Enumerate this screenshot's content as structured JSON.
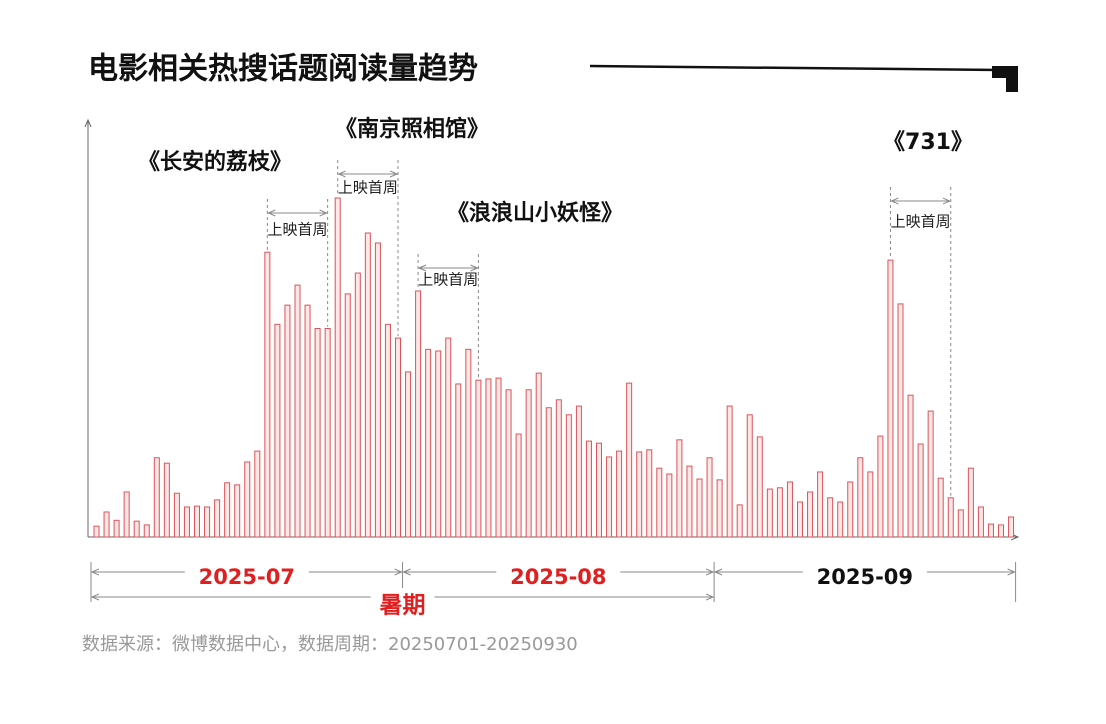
{
  "chart_data": {
    "type": "bar",
    "title": "电影相关热搜话题阅读量趋势",
    "source": "数据来源：微博数据中心，数据周期：20250701-20250930",
    "categories": [
      null,
      null,
      null,
      null,
      null,
      null,
      null,
      null,
      null,
      null,
      null,
      null,
      null,
      null,
      null,
      null,
      null,
      null,
      null,
      null,
      null,
      null,
      null,
      null,
      null,
      null,
      null,
      null,
      null,
      null,
      null,
      null,
      null,
      null,
      null,
      null,
      null,
      null,
      null,
      null,
      null,
      null,
      null,
      null,
      null,
      null,
      null,
      null,
      null,
      null,
      null,
      null,
      null,
      null,
      null,
      null,
      null,
      null,
      null,
      null,
      null,
      null,
      null,
      null,
      null,
      null,
      null,
      null,
      null,
      null,
      null,
      null,
      null,
      null,
      null,
      null,
      null,
      null,
      null,
      null,
      null,
      null,
      null,
      null,
      null,
      null,
      null,
      null,
      null,
      null,
      null,
      null
    ],
    "values": [
      2.6,
      6,
      4,
      10.8,
      3.8,
      2.9,
      19,
      17.7,
      10.5,
      7.2,
      7.4,
      7.2,
      8.9,
      13,
      12.5,
      18,
      20.6,
      68.3,
      51,
      55.6,
      60.4,
      55.6,
      50,
      50,
      81.3,
      58.3,
      63.3,
      72.9,
      70.5,
      51,
      47.7,
      39.6,
      59,
      45,
      44.6,
      47.7,
      36.7,
      45,
      37.6,
      37.9,
      38.1,
      35.3,
      24.7,
      35.3,
      39.3,
      31,
      32.9,
      29.3,
      31.4,
      23,
      22.5,
      19.2,
      20.6,
      36.9,
      20.4,
      20.9,
      16.5,
      15.1,
      23.3,
      17,
      13.9,
      19,
      13.7,
      31.4,
      7.7,
      29.3,
      24,
      11.5,
      11.8,
      13.2,
      8.4,
      10.8,
      15.6,
      9.4,
      8.4,
      13.2,
      19,
      15.6,
      24.2,
      66.4,
      55.9,
      34,
      22.3,
      30.2,
      14.1,
      9.4,
      6.5,
      16.5,
      7.2,
      3.1,
      2.9,
      4.8
    ],
    "color": "#d9545a",
    "ylim": [
      0,
      100
    ],
    "annotations": [
      {
        "label": "《长安的荔枝》",
        "note": "上映首周"
      },
      {
        "label": "《南京照相馆》",
        "note": "上映首周"
      },
      {
        "label": "《浪浪山小妖怪》",
        "note": "上映首周"
      },
      {
        "label": "《731》",
        "note": "上映首周"
      }
    ],
    "months": [
      {
        "label": "2025-07",
        "color": "#e02020"
      },
      {
        "label": "2025-08",
        "color": "#e02020"
      },
      {
        "label": "2025-09",
        "color": "#111111"
      }
    ],
    "period": {
      "label": "暑期",
      "color": "#e02020"
    }
  }
}
